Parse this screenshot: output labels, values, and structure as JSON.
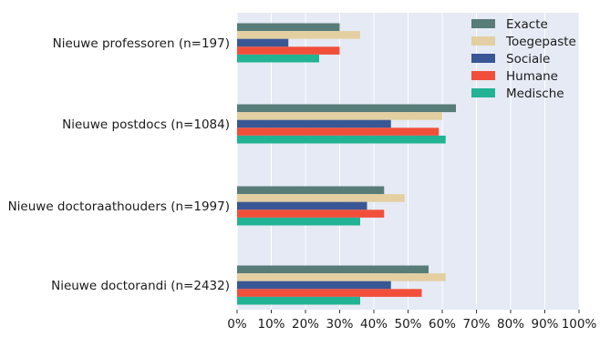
{
  "chart_data": {
    "type": "bar",
    "orientation": "horizontal",
    "categories": [
      "Nieuwe professoren (n=197)",
      "Nieuwe postdocs (n=1084)",
      "Nieuwe doctoraathouders (n=1997)",
      "Nieuwe doctorandi (n=2432)"
    ],
    "series": [
      {
        "name": "Exacte",
        "color": "#587c78",
        "values": [
          30,
          64,
          43,
          56
        ]
      },
      {
        "name": "Toegepaste",
        "color": "#e3cfa1",
        "values": [
          36,
          60,
          49,
          61
        ]
      },
      {
        "name": "Sociale",
        "color": "#3a5795",
        "values": [
          15,
          45,
          38,
          45
        ]
      },
      {
        "name": "Humane",
        "color": "#f24f3b",
        "values": [
          30,
          59,
          43,
          54
        ]
      },
      {
        "name": "Medische",
        "color": "#22b394",
        "values": [
          24,
          61,
          36,
          36
        ]
      }
    ],
    "xlim": [
      0,
      100
    ],
    "xticks": [
      "0%",
      "10%",
      "20%",
      "30%",
      "40%",
      "50%",
      "60%",
      "70%",
      "80%",
      "90%",
      "100%"
    ],
    "grid": true,
    "legend_position": "top-right",
    "background": "#e5eaf5"
  }
}
